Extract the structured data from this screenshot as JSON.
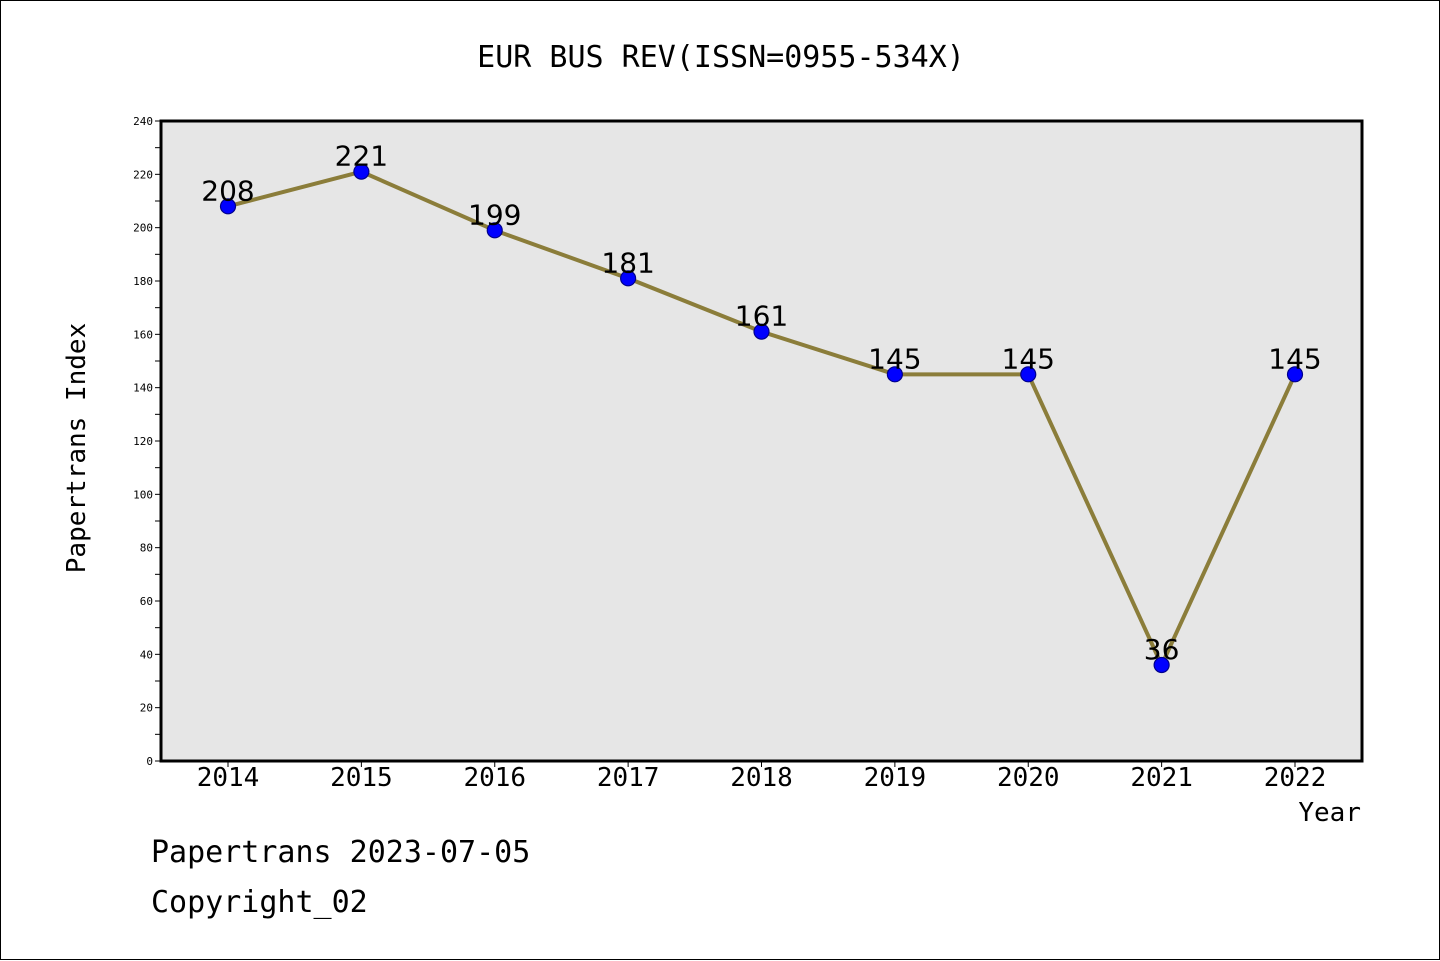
{
  "chart_data": {
    "type": "line",
    "title": "EUR BUS REV(ISSN=0955-534X)",
    "xlabel": "Year",
    "ylabel": "Papertrans Index",
    "categories": [
      "2014",
      "2015",
      "2016",
      "2017",
      "2018",
      "2019",
      "2020",
      "2021",
      "2022"
    ],
    "series": [
      {
        "values": [
          208,
          221,
          199,
          181,
          161,
          145,
          145,
          36,
          145
        ]
      }
    ],
    "data_labels": [
      "208",
      "221",
      "199",
      "181",
      "161",
      "145",
      "145",
      "36",
      "145"
    ],
    "ylim": [
      0,
      240
    ],
    "yticks": [
      "0",
      "20",
      "40",
      "60",
      "80",
      "100",
      "120",
      "140",
      "160",
      "180",
      "200",
      "220",
      "240"
    ],
    "grid": false,
    "legend": "none",
    "colors": {
      "line": "#8B7D3A",
      "marker_fill": "#0000FF",
      "marker_edge": "#00008B",
      "plot_background": "#E6E6E6"
    }
  },
  "footer": {
    "date_line": "Papertrans 2023-07-05",
    "copyright_line": "Copyright_02"
  }
}
